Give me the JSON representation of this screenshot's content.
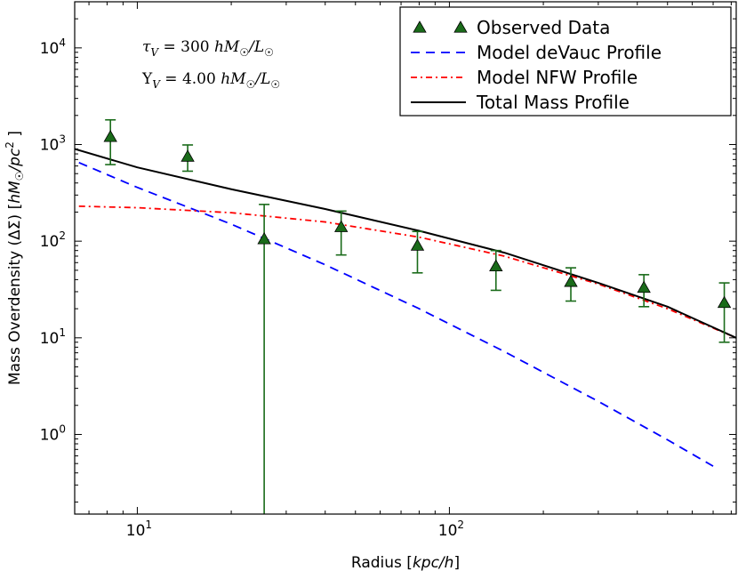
{
  "chart_data": {
    "type": "scatter",
    "xscale": "log",
    "yscale": "log",
    "xlim": [
      6.3,
      830
    ],
    "ylim": [
      0.15,
      30000
    ],
    "xlabel": "Radius [kpc/h]",
    "ylabel": "Mass Overdensity (ΔΣ) [hM☉/pc²]",
    "xticks": [
      {
        "value": 10,
        "base": "10",
        "exp": "1"
      },
      {
        "value": 100,
        "base": "10",
        "exp": "2"
      }
    ],
    "yticks": [
      {
        "value": 1,
        "base": "10",
        "exp": "0"
      },
      {
        "value": 10,
        "base": "10",
        "exp": "1"
      },
      {
        "value": 100,
        "base": "10",
        "exp": "2"
      },
      {
        "value": 1000,
        "base": "10",
        "exp": "3"
      },
      {
        "value": 10000,
        "base": "10",
        "exp": "4"
      }
    ],
    "annotations": [
      "τV = 300 hM☉/L☉",
      "ΥV = 4.00 hM☉/L☉"
    ],
    "legend_position": "top-right",
    "grid": false,
    "series": [
      {
        "name": "Observed Data",
        "style": "markers",
        "color": "#1a6b1a",
        "x": [
          8.2,
          14.5,
          25.5,
          45,
          79,
          141,
          245,
          420,
          760
        ],
        "y": [
          1200,
          750,
          105,
          140,
          90,
          55,
          38,
          33,
          23
        ],
        "yerr_low": [
          620,
          530,
          0.15,
          72,
          47,
          31,
          24,
          21,
          9
        ],
        "yerr_high": [
          1800,
          990,
          240,
          205,
          126,
          80,
          53,
          45,
          37
        ]
      },
      {
        "name": "Model deVauc Profile",
        "style": "dashed",
        "color": "#0000ff",
        "x": [
          6.5,
          10,
          20,
          40,
          80,
          150,
          300,
          500,
          700
        ],
        "y": [
          650,
          360,
          150,
          57,
          20,
          7.2,
          2.2,
          0.88,
          0.47
        ]
      },
      {
        "name": "Model NFW Profile",
        "style": "dashdot",
        "color": "#ff0000",
        "x": [
          6.5,
          10,
          20,
          40,
          80,
          150,
          300,
          500,
          830
        ],
        "y": [
          230,
          222,
          197,
          158,
          110,
          70,
          36,
          20,
          10
        ]
      },
      {
        "name": "Total Mass Profile",
        "style": "solid",
        "color": "#000000",
        "x": [
          6.3,
          10,
          20,
          40,
          80,
          150,
          300,
          500,
          830
        ],
        "y": [
          900,
          580,
          345,
          215,
          128,
          76,
          37,
          21,
          10
        ]
      }
    ]
  },
  "colors": {
    "observed": "#1a6b1a",
    "devauc": "#0000ff",
    "nfw": "#ff0000",
    "total": "#000000"
  }
}
